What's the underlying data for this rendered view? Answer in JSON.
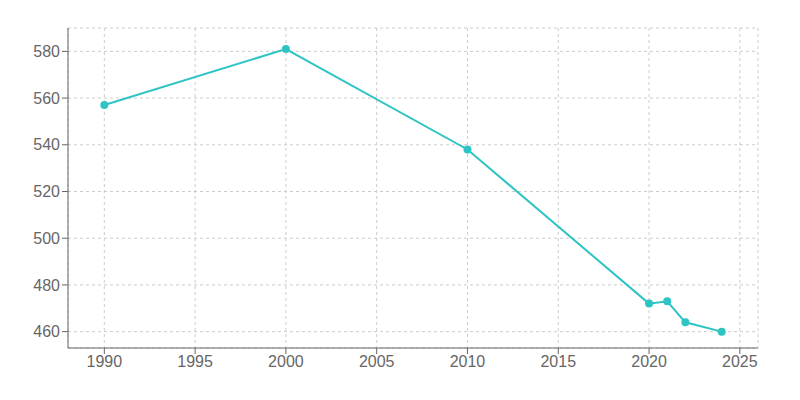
{
  "chart_data": {
    "type": "line",
    "x": [
      1990,
      2000,
      2010,
      2020,
      2021,
      2022,
      2024
    ],
    "values": [
      557,
      581,
      538,
      472,
      473,
      464,
      460
    ],
    "color": "#2EC4C4",
    "marker": "circle",
    "xlim": [
      1988,
      2026
    ],
    "ylim": [
      453,
      590
    ],
    "xticks": [
      1990,
      1995,
      2000,
      2005,
      2010,
      2015,
      2020,
      2025
    ],
    "yticks": [
      460,
      480,
      500,
      520,
      540,
      560,
      580
    ],
    "grid": true
  }
}
